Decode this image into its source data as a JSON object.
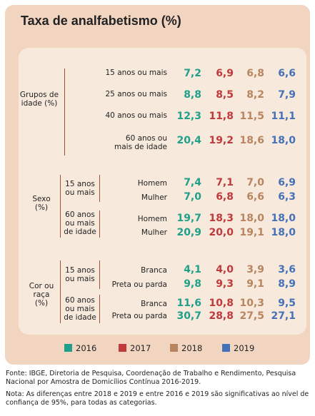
{
  "title": "Taxa de analfabetismo (%)",
  "colors": {
    "2016": "#20a08a",
    "2017": "#c0393b",
    "2018": "#b98560",
    "2019": "#4571b8",
    "panel": "#f1d5c1",
    "inner": "#f7e9dc"
  },
  "groups": {
    "age": "Grupos de idade (%)",
    "sex": "Sexo (%)",
    "race": "Cor ou raça (%)"
  },
  "subgroups": {
    "s1": "15 anos ou mais",
    "s2": "60 anos ou mais de idade",
    "r1": "15 anos ou mais",
    "r2": "60 anos ou mais de idade"
  },
  "rows": {
    "a1": {
      "label": "15 anos ou mais",
      "v2016": "7,2",
      "v2017": "6,9",
      "v2018": "6,8",
      "v2019": "6,6"
    },
    "a2": {
      "label": "25 anos ou mais",
      "v2016": "8,8",
      "v2017": "8,5",
      "v2018": "8,2",
      "v2019": "7,9"
    },
    "a3": {
      "label": "40 anos ou mais",
      "v2016": "12,3",
      "v2017": "11,8",
      "v2018": "11,5",
      "v2019": "11,1"
    },
    "a4": {
      "label": "60 anos ou mais de idade",
      "v2016": "20,4",
      "v2017": "19,2",
      "v2018": "18,6",
      "v2019": "18,0"
    },
    "s1": {
      "label": "Homem",
      "v2016": "7,4",
      "v2017": "7,1",
      "v2018": "7,0",
      "v2019": "6,9"
    },
    "s2": {
      "label": "Mulher",
      "v2016": "7,0",
      "v2017": "6,8",
      "v2018": "6,6",
      "v2019": "6,3"
    },
    "s3": {
      "label": "Homem",
      "v2016": "19,7",
      "v2017": "18,3",
      "v2018": "18,0",
      "v2019": "18,0"
    },
    "s4": {
      "label": "Mulher",
      "v2016": "20,9",
      "v2017": "20,0",
      "v2018": "19,1",
      "v2019": "18,0"
    },
    "c1": {
      "label": "Branca",
      "v2016": "4,1",
      "v2017": "4,0",
      "v2018": "3,9",
      "v2019": "3,6"
    },
    "c2": {
      "label": "Preta ou parda",
      "v2016": "9,8",
      "v2017": "9,3",
      "v2018": "9,1",
      "v2019": "8,9"
    },
    "c3": {
      "label": "Branca",
      "v2016": "11,6",
      "v2017": "10,8",
      "v2018": "10,3",
      "v2019": "9,5"
    },
    "c4": {
      "label": "Preta ou parda",
      "v2016": "30,7",
      "v2017": "28,8",
      "v2018": "27,5",
      "v2019": "27,1"
    }
  },
  "legend": [
    "2016",
    "2017",
    "2018",
    "2019"
  ],
  "footnote": {
    "source": "Fonte: IBGE, Diretoria de Pesquisa, Coordenação de Trabalho e Rendimento, Pesquisa Nacional por Amostra de Domicílios Contínua 2016-2019.",
    "note": "Nota: As diferenças entre 2018 e 2019 e entre 2016 e 2019 são significativas ao nível de confiança de 95%, para todas as categorias."
  },
  "chart_data": {
    "type": "table",
    "title": "Taxa de analfabetismo (%)",
    "series": [
      {
        "name": "2016",
        "values": [
          7.2,
          8.8,
          12.3,
          20.4,
          7.4,
          7.0,
          19.7,
          20.9,
          4.1,
          9.8,
          11.6,
          30.7
        ]
      },
      {
        "name": "2017",
        "values": [
          6.9,
          8.5,
          11.8,
          19.2,
          7.1,
          6.8,
          18.3,
          20.0,
          4.0,
          9.3,
          10.8,
          28.8
        ]
      },
      {
        "name": "2018",
        "values": [
          6.8,
          8.2,
          11.5,
          18.6,
          7.0,
          6.6,
          18.0,
          19.1,
          3.9,
          9.1,
          10.3,
          27.5
        ]
      },
      {
        "name": "2019",
        "values": [
          6.6,
          7.9,
          11.1,
          18.0,
          6.9,
          6.3,
          18.0,
          18.0,
          3.6,
          8.9,
          9.5,
          27.1
        ]
      }
    ],
    "legend": "bottom"
  }
}
